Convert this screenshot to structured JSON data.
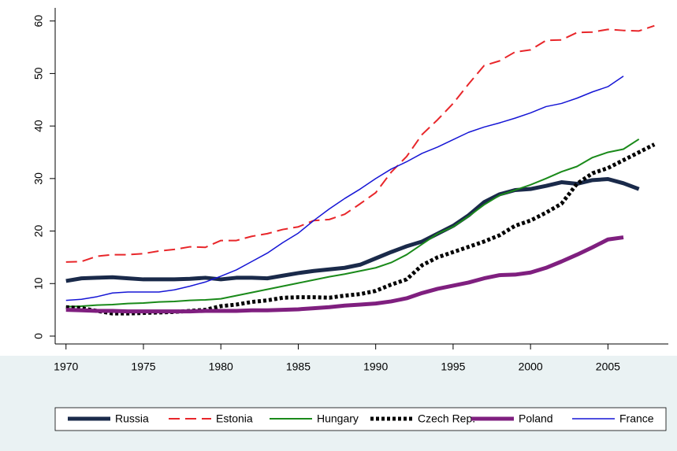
{
  "chart_data": {
    "type": "line",
    "x": [
      1970,
      1971,
      1972,
      1973,
      1974,
      1975,
      1976,
      1977,
      1978,
      1979,
      1980,
      1981,
      1982,
      1983,
      1984,
      1985,
      1986,
      1987,
      1988,
      1989,
      1990,
      1991,
      1992,
      1993,
      1994,
      1995,
      1996,
      1997,
      1998,
      1999,
      2000,
      2001,
      2002,
      2003,
      2004,
      2005,
      2006,
      2007,
      2008
    ],
    "series": [
      {
        "name": "Russia",
        "color": "#1a2a4a",
        "width": 5,
        "dash": "solid",
        "values": [
          10.5,
          11,
          11.1,
          11.2,
          11,
          10.8,
          10.8,
          10.8,
          10.9,
          11.1,
          10.8,
          11.1,
          11.1,
          11,
          11.5,
          12,
          12.4,
          12.7,
          13,
          13.6,
          14.8,
          16,
          17.1,
          18,
          19.5,
          21,
          23,
          25.5,
          27,
          27.8,
          28,
          28.6,
          29.3,
          29,
          29.7,
          29.9,
          29.1,
          28,
          null
        ]
      },
      {
        "name": "Estonia",
        "color": "#e8262a",
        "width": 2,
        "dash": "dashed",
        "values": [
          14.1,
          14.2,
          15.2,
          15.5,
          15.5,
          15.7,
          16.2,
          16.5,
          17,
          16.9,
          18.2,
          18.2,
          19,
          19.5,
          20.3,
          20.8,
          22,
          22.2,
          23.2,
          25.2,
          27.3,
          31.2,
          34.2,
          38.4,
          41.2,
          44.3,
          48,
          51.5,
          52.4,
          54.1,
          54.5,
          56.3,
          56.4,
          57.8,
          57.9,
          58.4,
          58.2,
          58.1,
          59.1
        ]
      },
      {
        "name": "Hungary",
        "color": "#1a8a1a",
        "width": 2,
        "dash": "solid",
        "values": [
          5.6,
          5.7,
          5.9,
          6,
          6.2,
          6.3,
          6.5,
          6.6,
          6.8,
          6.9,
          7.1,
          7.7,
          8.3,
          8.9,
          9.5,
          10.1,
          10.7,
          11.3,
          11.8,
          12.4,
          13,
          14,
          15.5,
          17.5,
          19.5,
          20.8,
          22.8,
          25,
          26.8,
          27.8,
          28.8,
          30,
          31.3,
          32.3,
          34,
          35,
          35.6,
          37.5,
          null
        ]
      },
      {
        "name": "Czech Rep.",
        "color": "#000000",
        "width": 5,
        "dash": "dotted",
        "values": [
          5.5,
          5.3,
          4.8,
          4.3,
          4.3,
          4.4,
          4.5,
          4.6,
          4.8,
          5,
          5.7,
          6,
          6.5,
          6.8,
          7.3,
          7.4,
          7.4,
          7.3,
          7.7,
          8,
          8.6,
          9.8,
          10.8,
          13.5,
          15,
          16,
          17,
          18,
          19.2,
          21,
          22,
          23.5,
          25.2,
          29,
          31,
          32,
          33.5,
          35,
          36.5
        ]
      },
      {
        "name": "Poland",
        "color": "#7f1f7f",
        "width": 5,
        "dash": "solid",
        "values": [
          5,
          4.9,
          4.8,
          4.8,
          4.7,
          4.7,
          4.7,
          4.7,
          4.7,
          4.8,
          4.8,
          4.8,
          4.9,
          4.9,
          5,
          5.1,
          5.3,
          5.5,
          5.8,
          6,
          6.2,
          6.6,
          7.2,
          8.2,
          9,
          9.6,
          10.2,
          11,
          11.6,
          11.7,
          12.1,
          13,
          14.2,
          15.5,
          16.9,
          18.4,
          18.8,
          null,
          null
        ]
      },
      {
        "name": "France",
        "color": "#1515d5",
        "width": 1.5,
        "dash": "solid",
        "values": [
          6.8,
          7,
          7.5,
          8.2,
          8.4,
          8.4,
          8.4,
          8.8,
          9.5,
          10.3,
          11.4,
          12.6,
          14.2,
          15.8,
          17.8,
          19.6,
          22,
          24.2,
          26.2,
          28,
          30,
          31.8,
          33.2,
          34.8,
          36,
          37.4,
          38.8,
          39.8,
          40.6,
          41.5,
          42.5,
          43.7,
          44.3,
          45.3,
          46.5,
          47.5,
          49.5,
          null,
          null
        ]
      }
    ],
    "xlim": [
      1969.3,
      2008.9
    ],
    "xticks": [
      1970,
      1975,
      1980,
      1985,
      1990,
      1995,
      2000,
      2005
    ],
    "ylim": [
      -1.5,
      62.5
    ],
    "yticks": [
      0,
      10,
      20,
      30,
      40,
      50,
      60
    ],
    "grid": false,
    "legend": "bottom"
  }
}
